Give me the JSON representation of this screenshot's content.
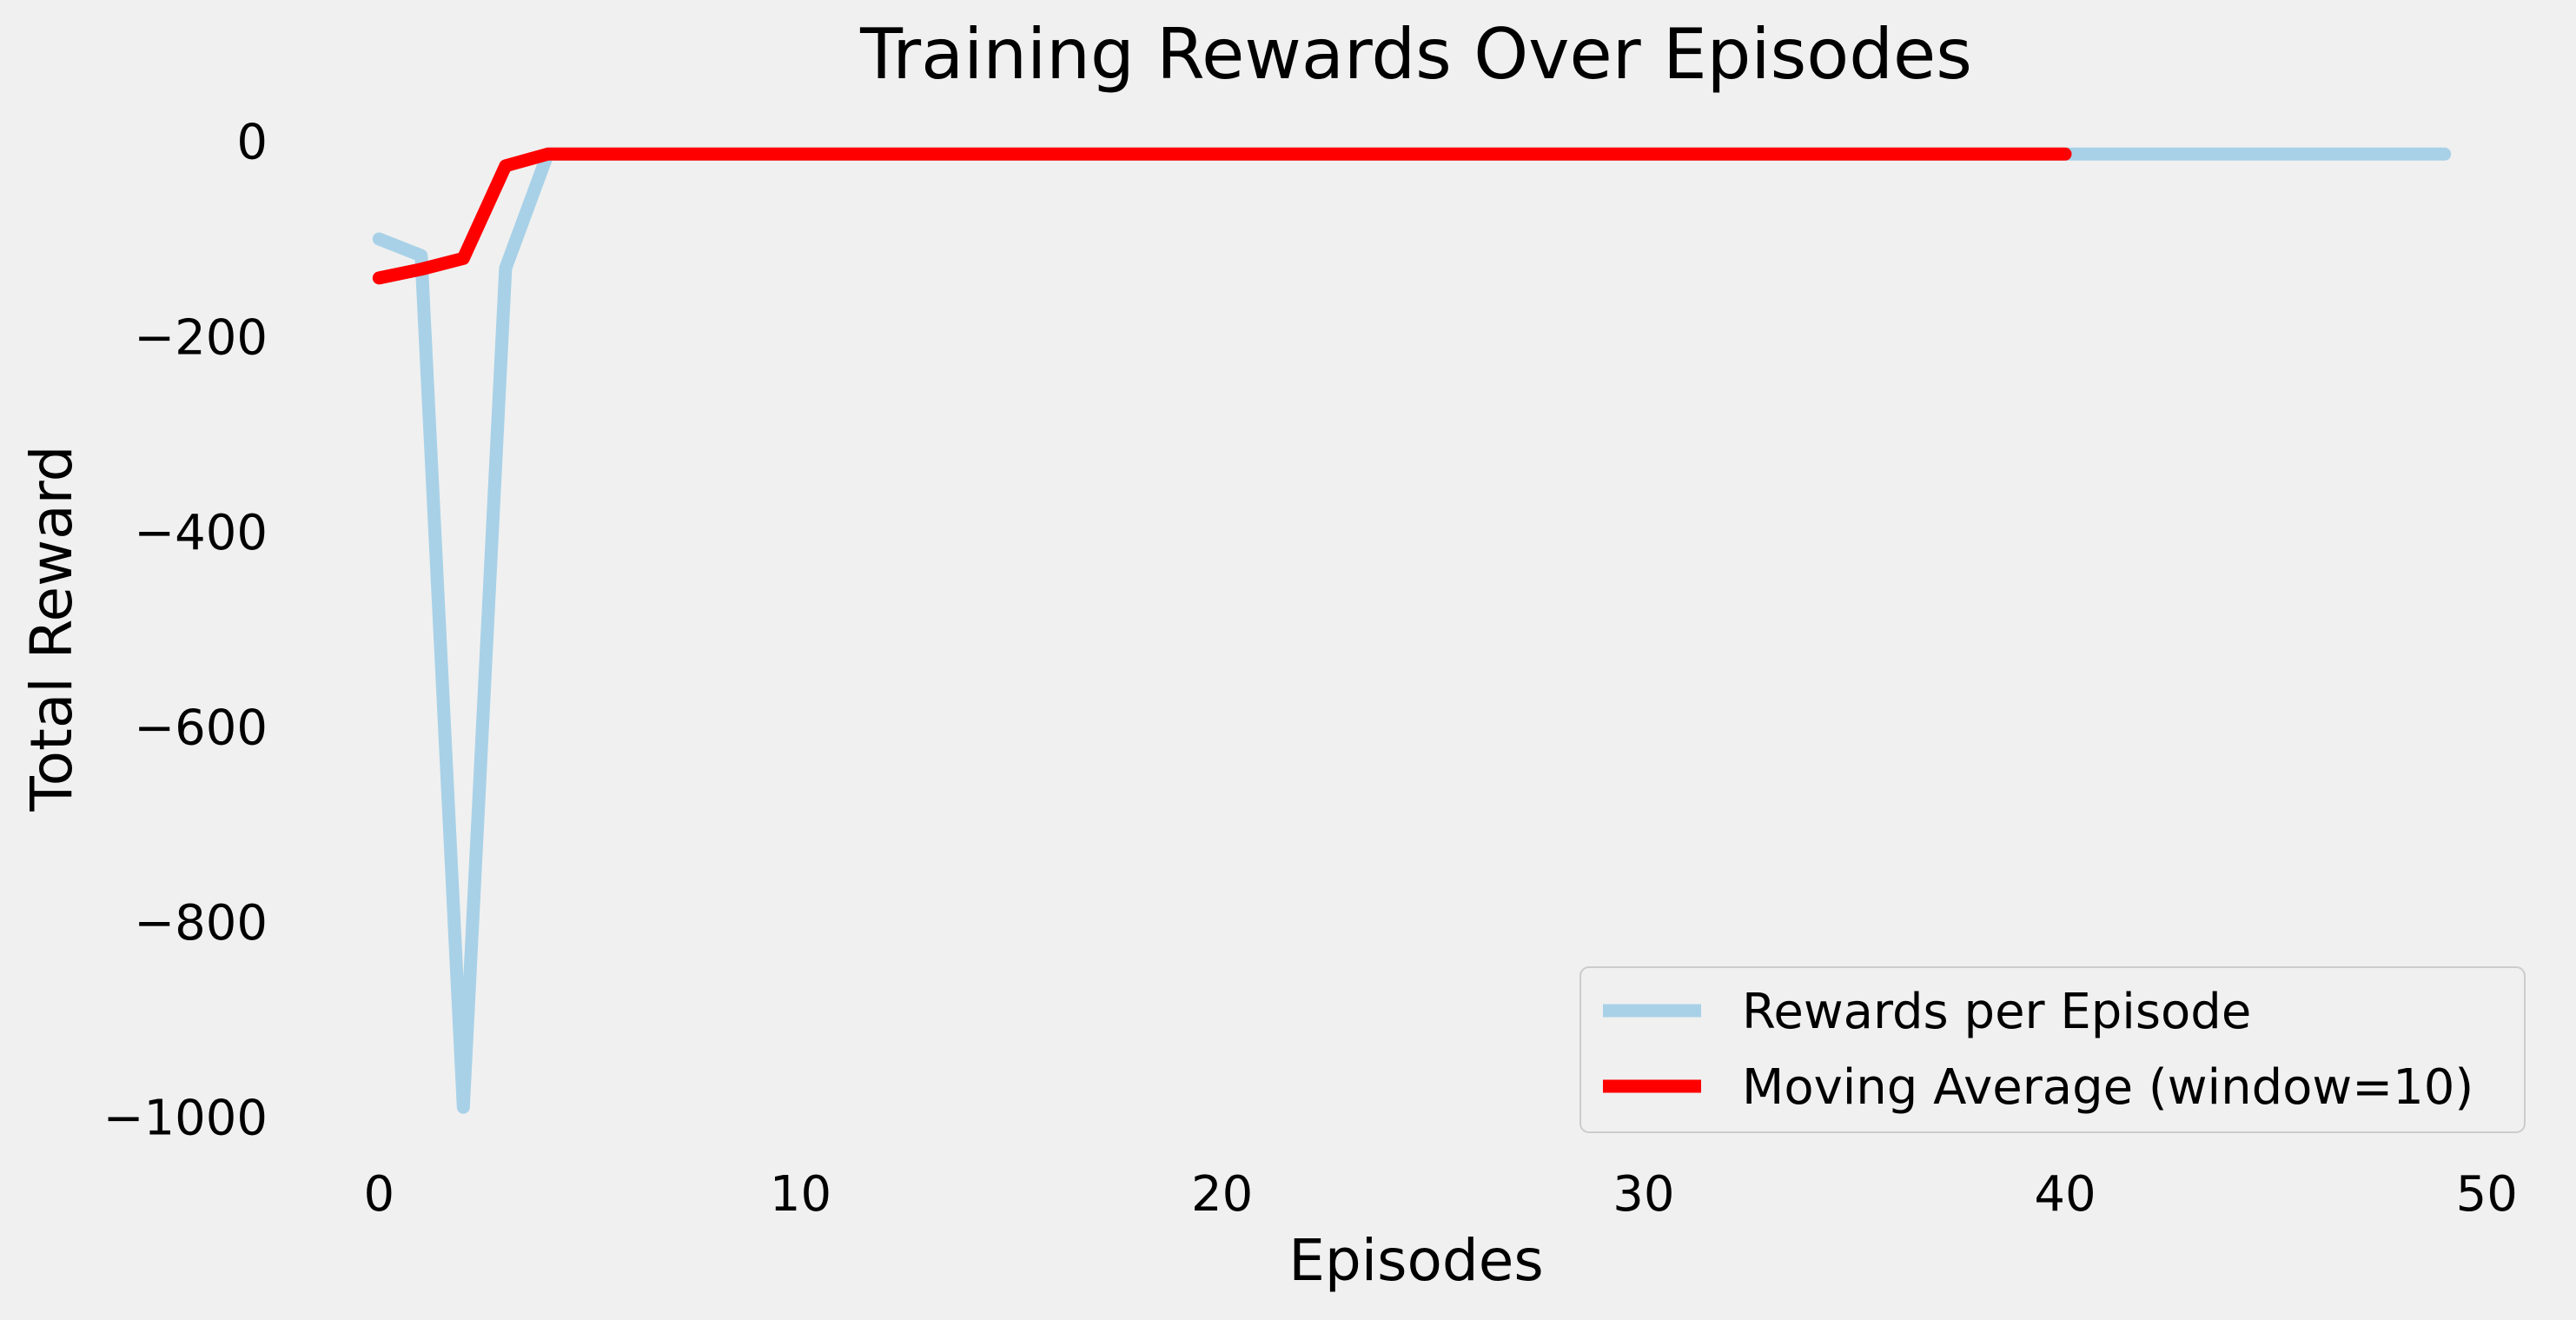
{
  "chart_data": {
    "type": "line",
    "title": "Training Rewards Over Episodes",
    "xlabel": "Episodes",
    "ylabel": "Total Reward",
    "xlim": [
      -2.5,
      51.5
    ],
    "ylim": [
      -1045,
      22
    ],
    "x_ticks": [
      0,
      10,
      20,
      30,
      40,
      50
    ],
    "x_tick_labels": [
      "0",
      "10",
      "20",
      "30",
      "40",
      "50"
    ],
    "y_ticks": [
      0,
      -200,
      -400,
      -600,
      -800,
      -1000
    ],
    "y_tick_labels": [
      "0",
      "−200",
      "−400",
      "−600",
      "−800",
      "−1000"
    ],
    "grid": false,
    "legend_position": "lower right",
    "series": [
      {
        "name": "Rewards per Episode",
        "color": "#a8d1e7",
        "x": [
          0,
          1,
          2,
          3,
          4,
          5,
          6,
          7,
          8,
          9,
          10,
          11,
          12,
          13,
          14,
          15,
          16,
          17,
          18,
          19,
          20,
          21,
          22,
          23,
          24,
          25,
          26,
          27,
          28,
          29,
          30,
          31,
          32,
          33,
          34,
          35,
          36,
          37,
          38,
          39,
          40,
          41,
          42,
          43,
          44,
          45,
          46,
          47,
          48,
          49
        ],
        "y": [
          -100,
          -117,
          -990,
          -130,
          -13,
          -13,
          -13,
          -13,
          -13,
          -13,
          -13,
          -13,
          -13,
          -13,
          -13,
          -13,
          -13,
          -13,
          -13,
          -13,
          -13,
          -13,
          -13,
          -13,
          -13,
          -13,
          -13,
          -13,
          -13,
          -13,
          -13,
          -13,
          -13,
          -13,
          -13,
          -13,
          -13,
          -13,
          -13,
          -13,
          -13,
          -13,
          -13,
          -13,
          -13,
          -13,
          -13,
          -13,
          -13,
          -13
        ]
      },
      {
        "name": "Moving Average (window=10)",
        "color": "#ff0000",
        "x": [
          0,
          1,
          2,
          3,
          4,
          5,
          6,
          7,
          8,
          9,
          10,
          11,
          12,
          13,
          14,
          15,
          16,
          17,
          18,
          19,
          20,
          21,
          22,
          23,
          24,
          25,
          26,
          27,
          28,
          29,
          30,
          31,
          32,
          33,
          34,
          35,
          36,
          37,
          38,
          39,
          40
        ],
        "y": [
          -140,
          -131,
          -120,
          -25,
          -13,
          -13,
          -13,
          -13,
          -13,
          -13,
          -13,
          -13,
          -13,
          -13,
          -13,
          -13,
          -13,
          -13,
          -13,
          -13,
          -13,
          -13,
          -13,
          -13,
          -13,
          -13,
          -13,
          -13,
          -13,
          -13,
          -13,
          -13,
          -13,
          -13,
          -13,
          -13,
          -13,
          -13,
          -13,
          -13,
          -13
        ]
      }
    ]
  }
}
